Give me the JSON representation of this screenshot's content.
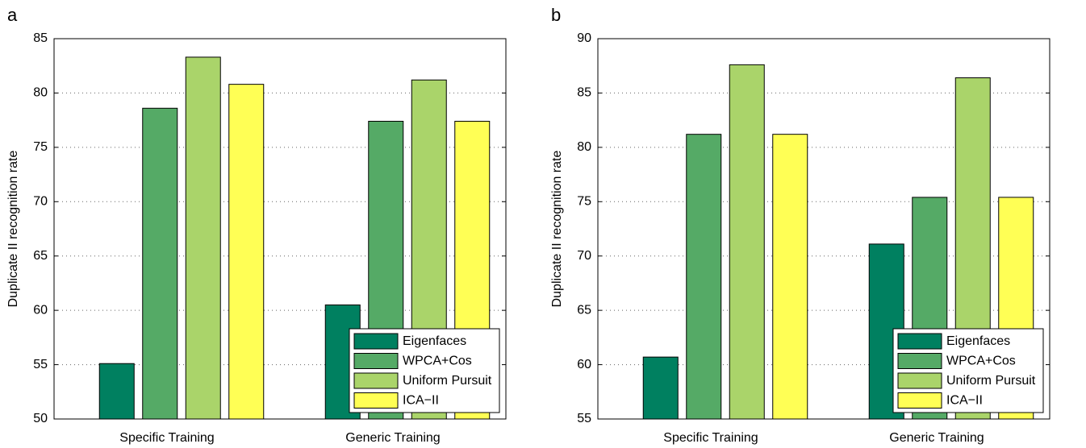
{
  "chart_data": [
    {
      "type": "bar",
      "panel_label": "a",
      "y_label": "Duplicate II recognition rate",
      "categories": [
        "Specific Training",
        "Generic Training"
      ],
      "series": [
        {
          "name": "Eigenfaces",
          "color": "#008060",
          "values": [
            55.1,
            60.5
          ]
        },
        {
          "name": "WPCA+Cos",
          "color": "#55aa66",
          "values": [
            78.6,
            77.4
          ]
        },
        {
          "name": "Uniform Pursuit",
          "color": "#aad46a",
          "values": [
            83.3,
            81.2
          ]
        },
        {
          "name": "ICA−II",
          "color": "#ffff55",
          "values": [
            80.8,
            77.4
          ]
        }
      ],
      "ylim": [
        50,
        85
      ],
      "yticks": [
        50,
        55,
        60,
        65,
        70,
        75,
        80,
        85
      ],
      "grid": true,
      "legend": "lower right"
    },
    {
      "type": "bar",
      "panel_label": "b",
      "y_label": "Duplicate II recognition rate",
      "categories": [
        "Specific Training",
        "Generic Training"
      ],
      "series": [
        {
          "name": "Eigenfaces",
          "color": "#008060",
          "values": [
            60.7,
            71.1
          ]
        },
        {
          "name": "WPCA+Cos",
          "color": "#55aa66",
          "values": [
            81.2,
            75.4
          ]
        },
        {
          "name": "Uniform Pursuit",
          "color": "#aad46a",
          "values": [
            87.6,
            86.4
          ]
        },
        {
          "name": "ICA−II",
          "color": "#ffff55",
          "values": [
            81.2,
            75.4
          ]
        }
      ],
      "ylim": [
        55,
        90
      ],
      "yticks": [
        55,
        60,
        65,
        70,
        75,
        80,
        85,
        90
      ],
      "grid": true,
      "legend": "lower right"
    }
  ]
}
